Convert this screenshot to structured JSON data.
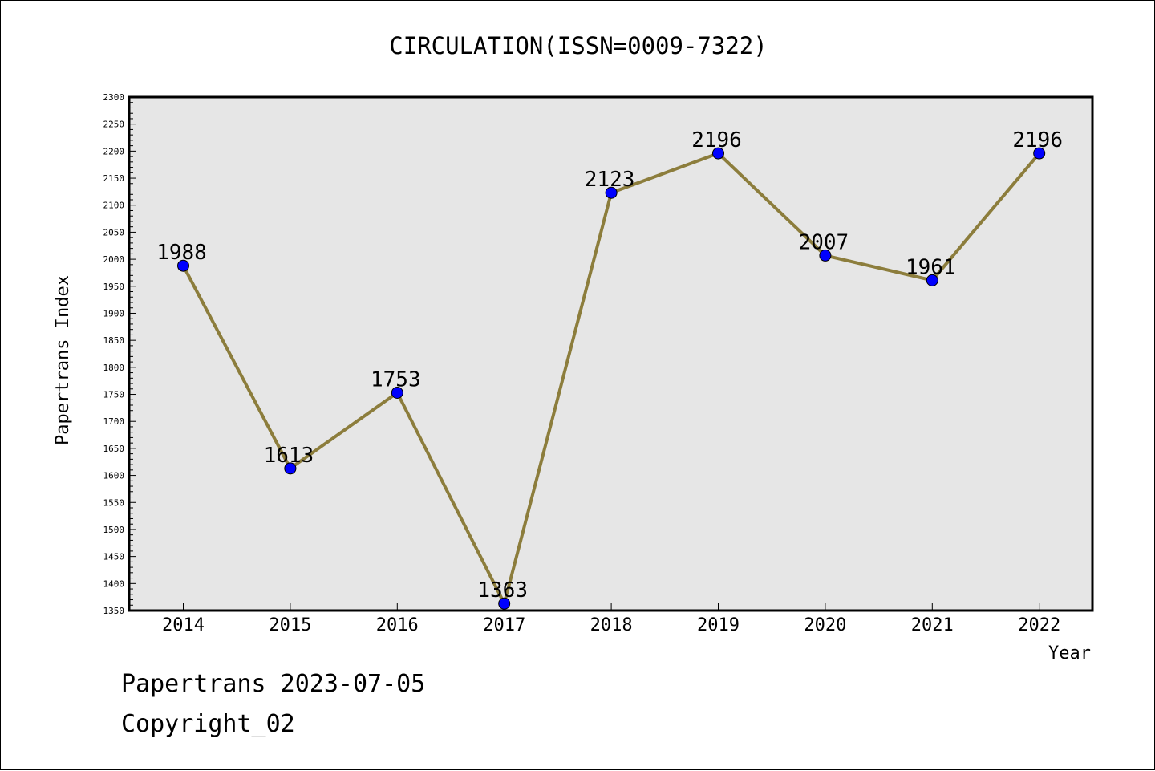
{
  "chart_data": {
    "type": "line",
    "title": "CIRCULATION(ISSN=0009-7322)",
    "xlabel": "Year",
    "ylabel": "Papertrans Index",
    "categories": [
      "2014",
      "2015",
      "2016",
      "2017",
      "2018",
      "2019",
      "2020",
      "2021",
      "2022"
    ],
    "series": [
      {
        "values": [
          1988,
          1613,
          1753,
          1363,
          2123,
          2196,
          2007,
          1961,
          2196
        ]
      }
    ],
    "data_labels": [
      "1988",
      "1613",
      "1753",
      "1363",
      "2123",
      "2196",
      "2007",
      "1961",
      "2196"
    ],
    "ylim": [
      1350,
      2300
    ],
    "yticks": [
      1350,
      1400,
      1450,
      1500,
      1550,
      1600,
      1650,
      1700,
      1750,
      1800,
      1850,
      1900,
      1950,
      2000,
      2050,
      2100,
      2150,
      2200,
      2250,
      2300
    ],
    "grid": false,
    "colors": {
      "line": "#8c7d3c",
      "marker": "#0000ff",
      "plot_background": "#e6e6e6"
    }
  },
  "footer": {
    "date_text": "Papertrans 2023-07-05",
    "copyright_text": "Copyright_02"
  }
}
